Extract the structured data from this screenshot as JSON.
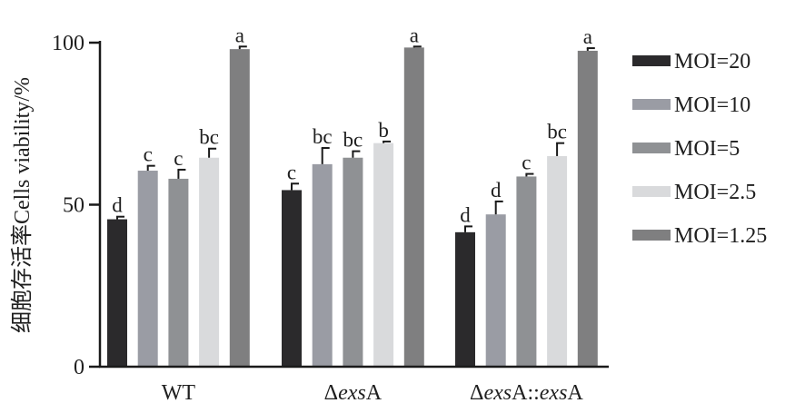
{
  "chart_data": {
    "type": "bar",
    "ylabel": "细胞存活率Cells viability/%",
    "ylim": [
      0,
      100
    ],
    "yticks": [
      0,
      50,
      100
    ],
    "categories": [
      {
        "pre": "",
        "italic": "",
        "post": "WT"
      },
      {
        "pre": "Δ",
        "italic": "exs",
        "post": "A"
      },
      {
        "pre": "Δ",
        "italic": "exs",
        "post": "A::",
        "italic2": "exs",
        "post2": "A"
      }
    ],
    "series": [
      {
        "name": "MOI=20",
        "color": "#2b2a2c",
        "values": [
          45.5,
          54.5,
          41.5
        ],
        "errors": [
          0.8,
          2.0,
          1.8
        ],
        "letters": [
          "d",
          "c",
          "d"
        ]
      },
      {
        "name": "MOI=10",
        "color": "#9a9ca4",
        "values": [
          60.5,
          62.5,
          47.0
        ],
        "errors": [
          1.5,
          5.0,
          4.0
        ],
        "letters": [
          "c",
          "bc",
          "d"
        ]
      },
      {
        "name": "MOI=5",
        "color": "#8f9194",
        "values": [
          58.0,
          64.5,
          58.7
        ],
        "errors": [
          2.8,
          2.0,
          0.8
        ],
        "letters": [
          "c",
          "bc",
          "c"
        ]
      },
      {
        "name": "MOI=2.5",
        "color": "#d9dadc",
        "values": [
          64.5,
          69.0,
          65.0
        ],
        "errors": [
          2.8,
          0.5,
          4.0
        ],
        "letters": [
          "bc",
          "b",
          "bc"
        ]
      },
      {
        "name": "MOI=1.25",
        "color": "#7f7f80",
        "values": [
          98.0,
          98.5,
          97.5
        ],
        "errors": [
          0.8,
          0.3,
          0.8
        ],
        "letters": [
          "a",
          "a",
          "a"
        ]
      }
    ],
    "legend_position": "right"
  }
}
